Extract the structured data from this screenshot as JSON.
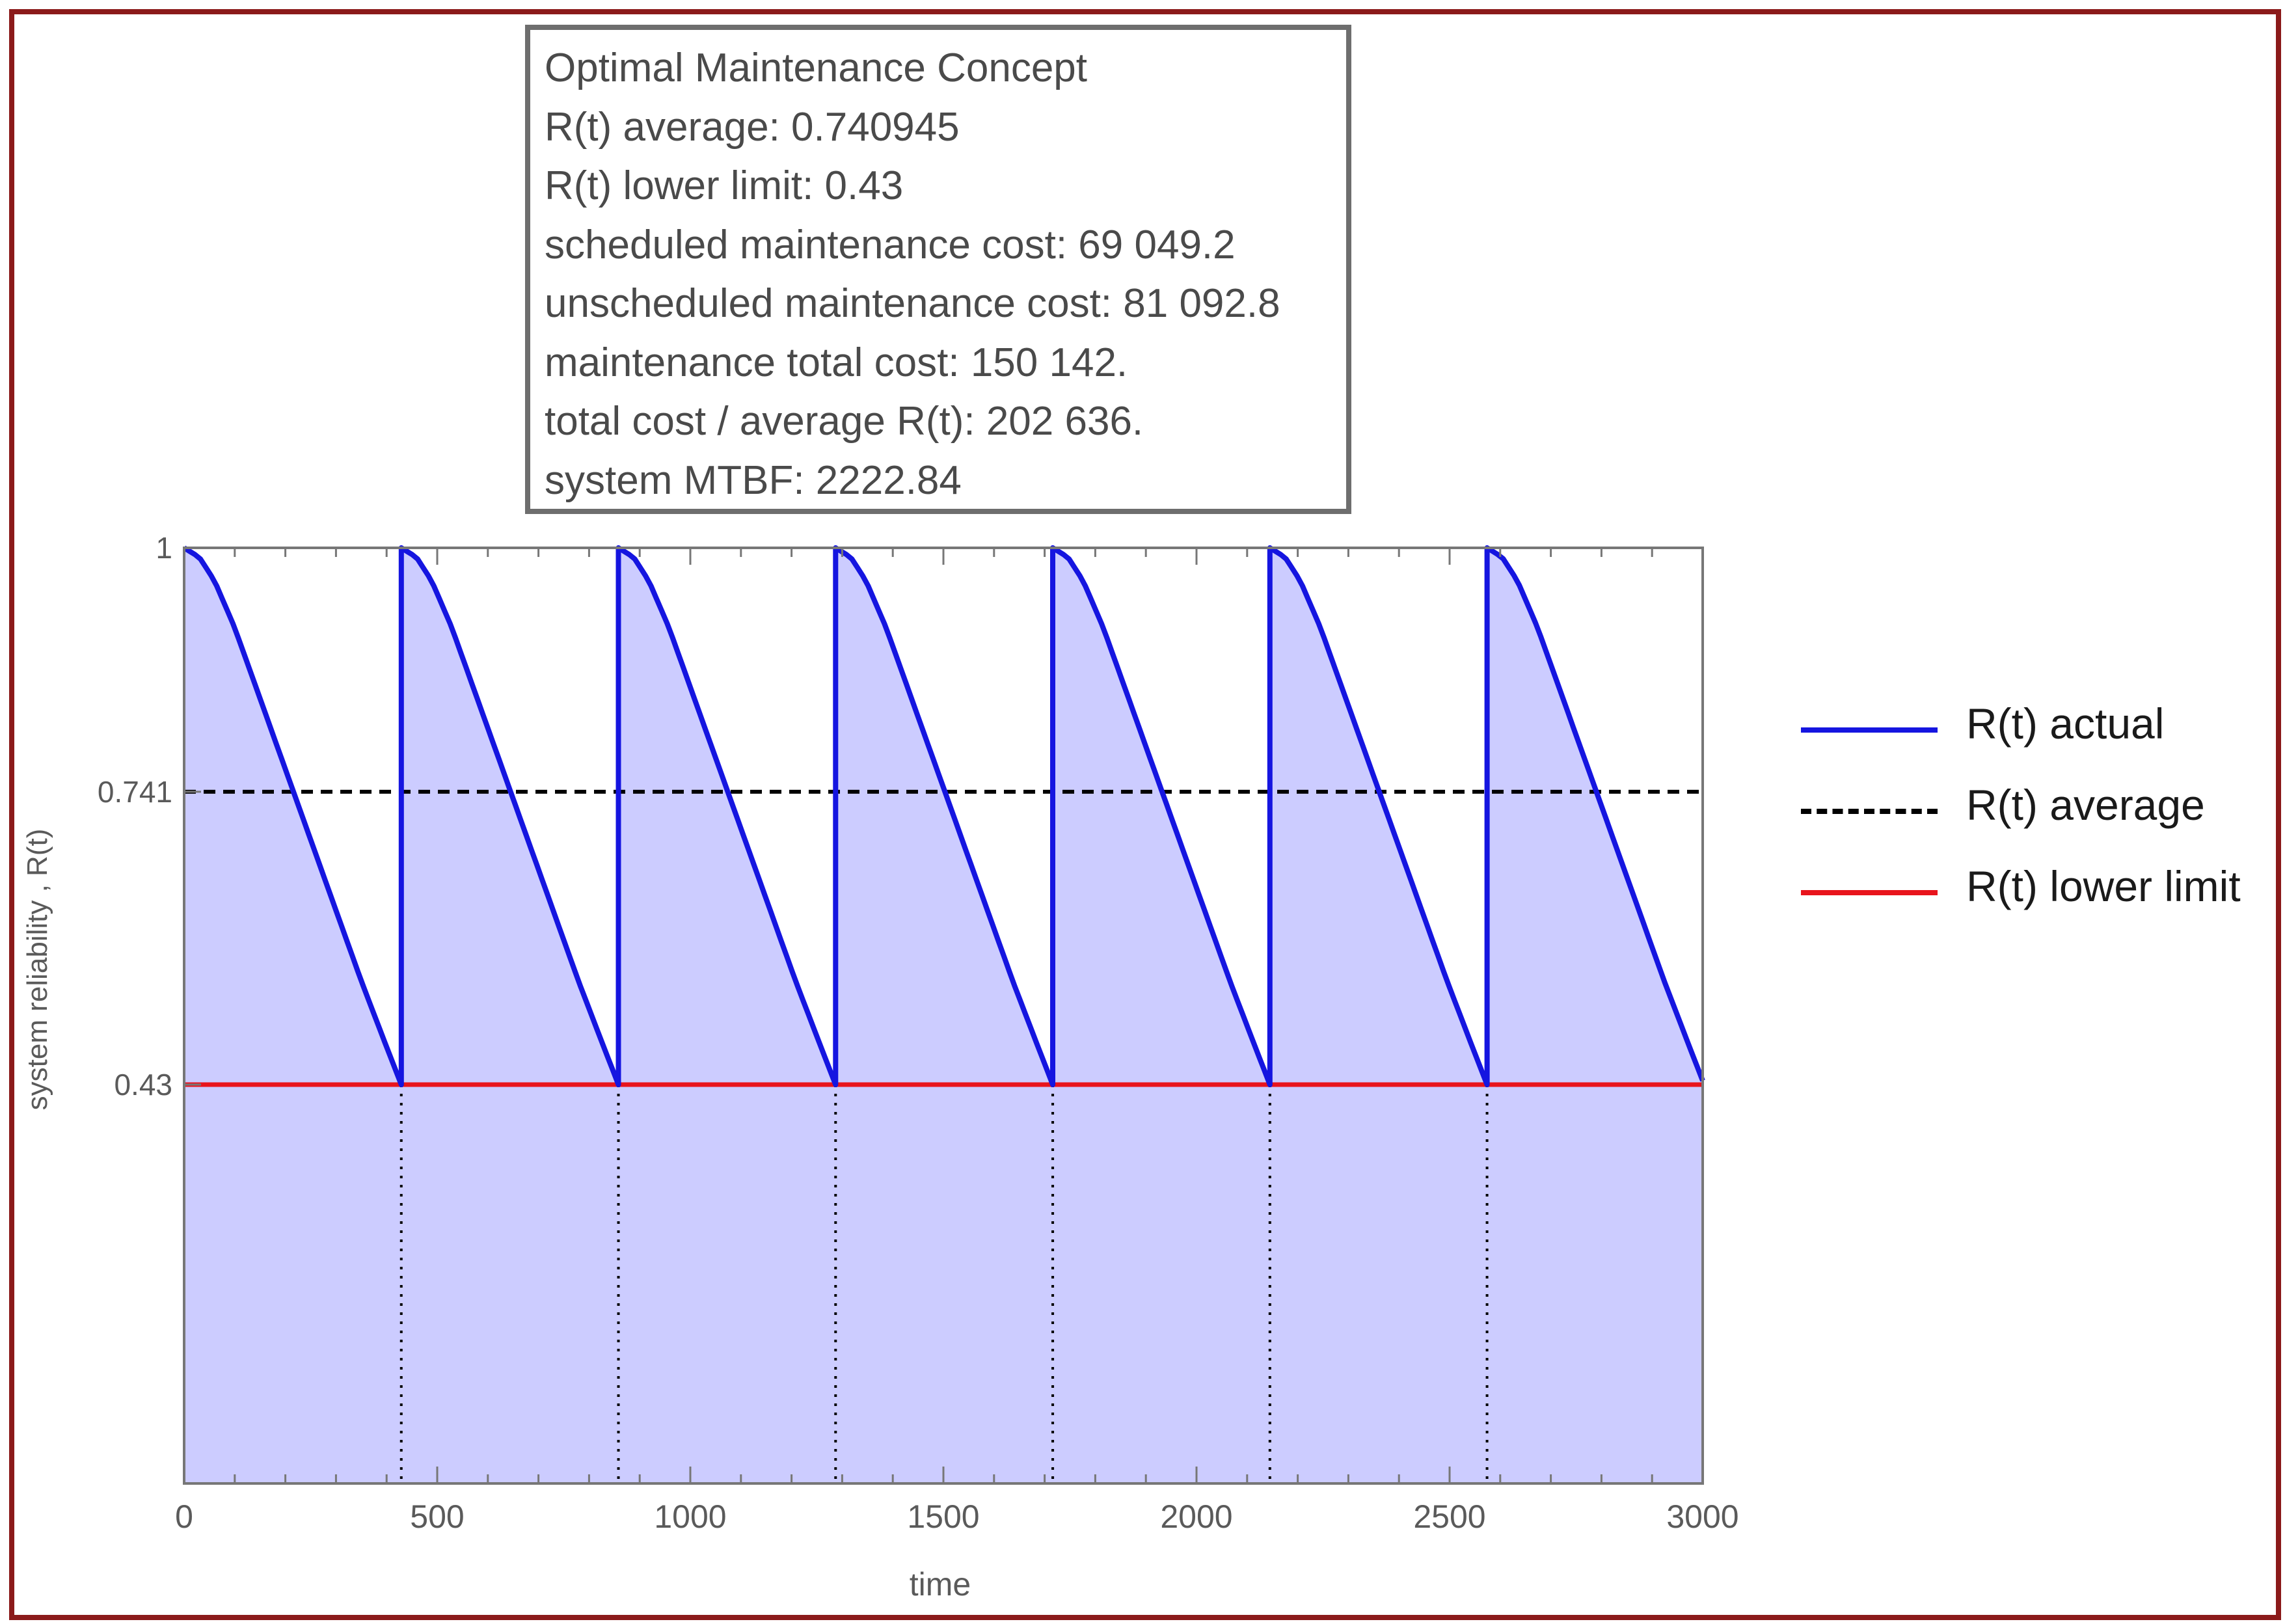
{
  "info_box": {
    "lines": [
      "Optimal Maintenance Concept",
      "R(t) average: 0.740945",
      "R(t) lower limit: 0.43",
      "scheduled maintenance cost: 69 049.2",
      "unscheduled maintenance cost: 81 092.8",
      "maintenance total cost: 150 142.",
      "total cost / average R(t): 202 636.",
      "system MTBF: 2222.84"
    ]
  },
  "legend": {
    "items": [
      {
        "label": "R(t) actual",
        "color": "#1515e0",
        "style": "solid"
      },
      {
        "label": "R(t) average",
        "color": "#000000",
        "style": "dashed"
      },
      {
        "label": "R(t) lower limit",
        "color": "#e8141c",
        "style": "solid"
      }
    ]
  },
  "chart_data": {
    "type": "line",
    "xlabel": "time",
    "ylabel": "system reliability , R(t)",
    "xlim": [
      0,
      3000
    ],
    "ylim": [
      0,
      1
    ],
    "x_ticks": [
      0,
      500,
      1000,
      1500,
      2000,
      2500,
      3000
    ],
    "x_tick_labels": [
      "0",
      "500",
      "1000",
      "1500",
      "2000",
      "2500",
      "3000"
    ],
    "y_ticks": [
      1,
      0.741,
      0.43
    ],
    "y_tick_labels": [
      "1",
      "0.741",
      "0.43"
    ],
    "maintenance_times": [
      429,
      858,
      1287,
      1716,
      2145,
      2574
    ],
    "series": [
      {
        "name": "R(t) actual",
        "color": "#1515e0",
        "cycle_length": 429,
        "cycle_profile_t": [
          0,
          30,
          60,
          100,
          150,
          200,
          250,
          300,
          350,
          400,
          429
        ],
        "cycle_profile_R": [
          1.0,
          0.99,
          0.965,
          0.915,
          0.84,
          0.765,
          0.69,
          0.615,
          0.54,
          0.47,
          0.43
        ]
      },
      {
        "name": "R(t) average",
        "color": "#000000",
        "constant": 0.741
      },
      {
        "name": "R(t) lower limit",
        "color": "#e8141c",
        "constant": 0.43
      }
    ],
    "fill_color": "#ccccff"
  }
}
